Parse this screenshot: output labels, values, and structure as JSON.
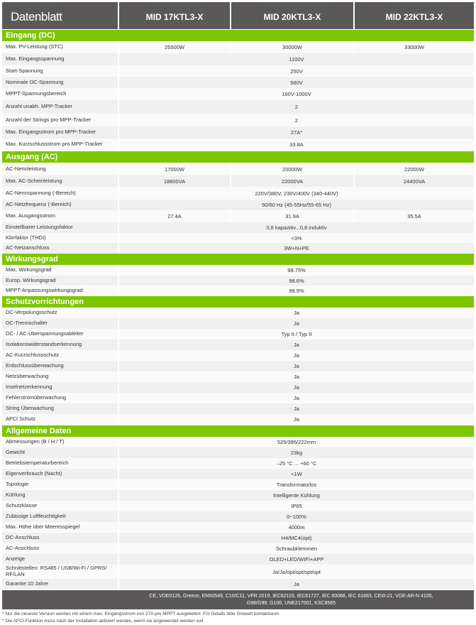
{
  "header": {
    "title": "Datenblatt",
    "models": [
      "MID 17KTL3-X",
      "MID 20KTL3-X",
      "MID 22KTL3-X"
    ]
  },
  "colors": {
    "header_bg": "#5a5858",
    "section_bg": "#7dc600"
  },
  "sections": [
    {
      "title": "Eingang (DC)",
      "rows": [
        {
          "label": "Max. PV-Leistung (STC)",
          "values": [
            "25500W",
            "30000W",
            "33000W"
          ]
        },
        {
          "label": "Max. Eingangsspannung",
          "values": [
            "1100V"
          ]
        },
        {
          "label": "Start-Spannung",
          "values": [
            "250V"
          ]
        },
        {
          "label": "Nominale DC-Spannung",
          "values": [
            "580V"
          ]
        },
        {
          "label": "MPPT-Spannungsbereich",
          "values": [
            "160V-1000V"
          ]
        },
        {
          "label": "Anzahl unabh. MPP-Tracker",
          "values": [
            "2"
          ]
        },
        {
          "label": "Anzahl der Strings pro MPP-Tracker",
          "values": [
            "2"
          ]
        },
        {
          "label": "Max. Eingangsstrom pro MPP-Tracker",
          "values": [
            "27A*"
          ]
        },
        {
          "label": "Max. Kurzschlussstrom pro MPP-Tracker",
          "values": [
            "33.8A"
          ]
        }
      ]
    },
    {
      "title": "Ausgang (AC)",
      "rows": [
        {
          "label": "AC-Nennleistung",
          "values": [
            "17000W",
            "20000W",
            "22000W"
          ]
        },
        {
          "label": "Max. AC-Scheinleistung",
          "values": [
            "18800VA",
            "22000VA",
            "24400VA"
          ]
        },
        {
          "label": "AC-Nennspannung (-Bereich)",
          "values": [
            "220V/380V, 230V/400V  (340-440V)"
          ]
        },
        {
          "label": "AC-Netzfrequenz (-Bereich)",
          "values": [
            "50/60 Hz (45-55Hz/55-65 Hz)"
          ]
        },
        {
          "label": "Max. Ausgangsstrom",
          "values": [
            "27.4A",
            "31.9A",
            "35.5A"
          ]
        },
        {
          "label": "Einstellbarer Leistungsfaktor",
          "values": [
            "0,8 kapazitiv...0,8 induktiv"
          ]
        },
        {
          "label": "Klirrfaktor (THDI)",
          "values": [
            "<3%"
          ]
        },
        {
          "label": "AC-Netzanschluss",
          "values": [
            "3W+N+PE"
          ]
        }
      ]
    },
    {
      "title": "Wirkungsgrad",
      "rows": [
        {
          "label": "Max. Wirkungsgrad",
          "values": [
            "98.75%"
          ]
        },
        {
          "label": "Europ. Wirkungsgrad",
          "values": [
            "98.6%"
          ]
        },
        {
          "label": "MPPT-Anpassungswirkungsgrad",
          "values": [
            "99.9%"
          ]
        }
      ]
    },
    {
      "title": "Schutzvorrichtungen",
      "rows": [
        {
          "label": "DC-Verpolungsschutz",
          "values": [
            "Ja"
          ]
        },
        {
          "label": "DC-Trennschalter",
          "values": [
            "Ja"
          ]
        },
        {
          "label": "DC- / AC-Überspannungsableiter",
          "values": [
            "Typ II / Typ II"
          ]
        },
        {
          "label": "Isolationswiderstandserkennung",
          "values": [
            "Ja"
          ]
        },
        {
          "label": "AC-Kurzschlussschutz",
          "values": [
            "Ja"
          ]
        },
        {
          "label": "Erdschlussüberwachung",
          "values": [
            "Ja"
          ]
        },
        {
          "label": "Netzüberwachung",
          "values": [
            "Ja"
          ]
        },
        {
          "label": "Inselnetzerkennung",
          "values": [
            "Ja"
          ]
        },
        {
          "label": "Fehlerstromüberwachung",
          "values": [
            "Ja"
          ]
        },
        {
          "label": "String Überwachung",
          "values": [
            "Ja"
          ]
        },
        {
          "label": "AFCI Schutz",
          "values": [
            "Ja"
          ]
        }
      ]
    },
    {
      "title": "Allgemeine Daten",
      "rows": [
        {
          "label": "Abmessungen (B / H / T)",
          "values": [
            "525/395/222mm"
          ]
        },
        {
          "label": "Gewicht",
          "values": [
            "23kg"
          ]
        },
        {
          "label": "Betriebstemperaturbereich",
          "values": [
            "–25 °C ... +60 °C"
          ]
        },
        {
          "label": "Eigenverbrauch (Nacht)",
          "values": [
            "<1W"
          ]
        },
        {
          "label": "Topologie",
          "values": [
            "Transformatorlos"
          ]
        },
        {
          "label": "Kühlung",
          "values": [
            "Intelligente Kühlung"
          ]
        },
        {
          "label": "Schutzklasse",
          "values": [
            "IP65"
          ]
        },
        {
          "label": "Zulässige Luftfeuchtigkeit",
          "values": [
            "0~100%"
          ]
        },
        {
          "label": "Max. Höhe über Meeresspiegel",
          "values": [
            "4000m"
          ]
        },
        {
          "label": "DC-Anschluss",
          "values": [
            "H4/MC4(opt)"
          ]
        },
        {
          "label": "AC-Anschluss",
          "values": [
            "Schraubklemmen"
          ]
        },
        {
          "label": "Anzeige",
          "values": [
            "OLED+LED/WIFI+APP"
          ]
        },
        {
          "label": "Schnittstellen: RS485 / USB/Wi-Fi / GPRS/ RF/LAN",
          "values": [
            "Ja/Ja/opt/opt/opt/opt"
          ]
        },
        {
          "label": "Garantie:10 Jahre",
          "values": [
            "Ja"
          ]
        }
      ]
    }
  ],
  "certifications": {
    "line1": "CE, VDE0126, Greece, EN50549, C10/C11, VFR 2019, IEC62116, IEC61727, IEC 60068, IEC 61683, CEI0-21, VDE-AR-N 4105,",
    "line2": "G98/G99, G100, UNE217001, KSC8565"
  },
  "notes": [
    "* Nur die neueste Version werden mit einem max. Eingangsstrom von 27A pro MPPT ausgeliefert. Für Details bitte Growatt kontaktieren.",
    "* Die AFCI-Funktion muss nach der Installation aktiviert werden, wenn sie angewendet werden soll."
  ]
}
